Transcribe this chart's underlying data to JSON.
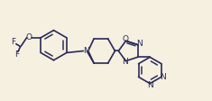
{
  "bg_color": "#f5f0e0",
  "line_color": "#2a2a5a",
  "lw": 1.2,
  "fs": 6.5,
  "figsize": [
    2.35,
    1.12
  ],
  "dpi": 100,
  "atoms": {
    "O_label": "O",
    "N_pip": "N",
    "O_od": "O",
    "N_od1": "N",
    "N_od2": "N",
    "N_pyr1": "N",
    "N_pyr2": "N",
    "F1": "F",
    "F2": "F"
  }
}
